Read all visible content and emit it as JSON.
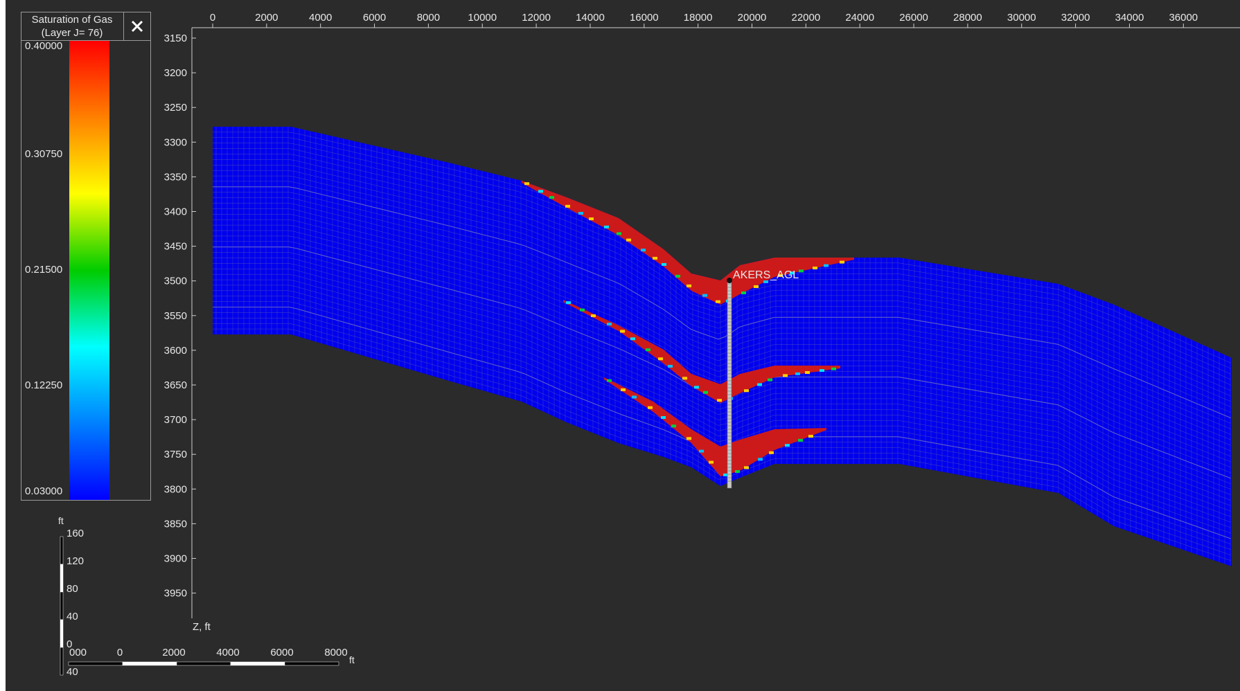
{
  "legend": {
    "title_line1": "Saturation of Gas",
    "title_line2": "(Layer J= 76)",
    "close_icon": "close-icon",
    "ticks": [
      "0.40000",
      "0.30750",
      "0.21500",
      "0.12250",
      "0.03000"
    ],
    "colors": [
      "#ff0000",
      "#ff8000",
      "#ffff00",
      "#00cc00",
      "#00ffff",
      "#0080ff",
      "#0000ff"
    ]
  },
  "x_axis": {
    "ticks": [
      "0",
      "2000",
      "4000",
      "6000",
      "8000",
      "10000",
      "12000",
      "14000",
      "16000",
      "18000",
      "20000",
      "22000",
      "24000",
      "26000",
      "28000",
      "30000",
      "32000",
      "34000",
      "36000"
    ]
  },
  "z_axis": {
    "label": "Z, ft",
    "ticks": [
      "3150",
      "3200",
      "3250",
      "3300",
      "3350",
      "3400",
      "3450",
      "3500",
      "3550",
      "3600",
      "3650",
      "3700",
      "3750",
      "3800",
      "3850",
      "3900",
      "3950"
    ]
  },
  "well": {
    "name": "AKERS_AGL"
  },
  "scale_bars": {
    "vertical_unit": "ft",
    "vertical_ticks": [
      "160",
      "120",
      "80",
      "40",
      "0",
      "40"
    ],
    "horizontal_unit": "ft",
    "horizontal_ticks": [
      "000",
      "0",
      "2000",
      "4000",
      "6000",
      "8000"
    ]
  },
  "colors": {
    "background": "#2b2b2b",
    "grid_fill": "#0000ee",
    "grid_line": "#5a5ab0",
    "gas_zone": "#cc1a1a",
    "axis_text": "#e8e8e8"
  }
}
